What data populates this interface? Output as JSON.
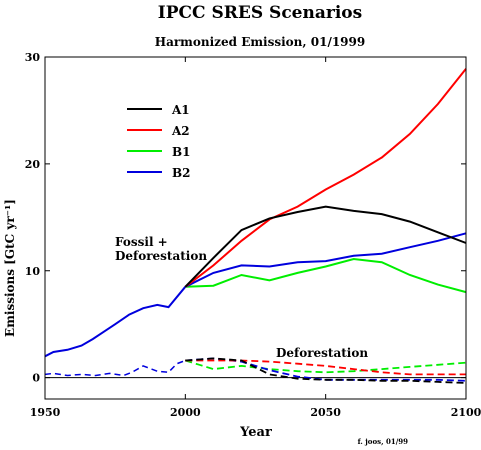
{
  "chart_data": {
    "type": "line",
    "title": "IPCC SRES Scenarios",
    "subtitle": "Harmonized Emission, 01/1999",
    "xlabel": "Year",
    "ylabel": "Emissions [GtC yr⁻¹]",
    "xlim": [
      1950,
      2100
    ],
    "ylim": [
      -2,
      30
    ],
    "xticks": [
      1950,
      2000,
      2050,
      2100
    ],
    "yticks": [
      0,
      10,
      20,
      30
    ],
    "grid": false,
    "legend": "upper-left",
    "annotations": [
      "Fossil +",
      "Deforestation",
      "Deforestation"
    ],
    "credit": "f. joos, 01/99",
    "historical": {
      "name": "",
      "color": "#0000dd",
      "fossil": {
        "x": [
          1950,
          1953,
          1958,
          1963,
          1967,
          1971,
          1975,
          1980,
          1985,
          1990,
          1994,
          2000
        ],
        "y": [
          2.0,
          2.4,
          2.6,
          3.0,
          3.6,
          4.3,
          5.0,
          5.9,
          6.5,
          6.8,
          6.6,
          8.5
        ]
      },
      "deforestation": {
        "x": [
          1950,
          1953,
          1958,
          1963,
          1968,
          1973,
          1978,
          1981,
          1985,
          1990,
          1994,
          1997,
          2000
        ],
        "y": [
          0.3,
          0.4,
          0.2,
          0.3,
          0.2,
          0.4,
          0.2,
          0.5,
          1.1,
          0.6,
          0.5,
          1.3,
          1.6
        ]
      }
    },
    "series": [
      {
        "name": "A1",
        "color": "#000000",
        "fossil": {
          "x": [
            2000,
            2010,
            2020,
            2030,
            2040,
            2050,
            2060,
            2070,
            2080,
            2090,
            2100
          ],
          "y": [
            8.5,
            11.2,
            13.8,
            14.9,
            15.5,
            16.0,
            15.6,
            15.3,
            14.6,
            13.6,
            12.6
          ]
        },
        "deforestation": {
          "x": [
            2000,
            2005,
            2010,
            2020,
            2030,
            2040,
            2050,
            2060,
            2070,
            2080,
            2090,
            2100
          ],
          "y": [
            1.6,
            1.7,
            1.8,
            1.6,
            0.3,
            -0.1,
            -0.2,
            -0.2,
            -0.3,
            -0.3,
            -0.4,
            -0.5
          ]
        }
      },
      {
        "name": "A2",
        "color": "#ff0000",
        "fossil": {
          "x": [
            2000,
            2010,
            2020,
            2030,
            2040,
            2050,
            2060,
            2070,
            2080,
            2090,
            2100
          ],
          "y": [
            8.5,
            10.5,
            12.8,
            14.8,
            16.0,
            17.6,
            19.0,
            20.6,
            22.8,
            25.6,
            28.9
          ]
        },
        "deforestation": {
          "x": [
            2000,
            2010,
            2020,
            2030,
            2040,
            2050,
            2060,
            2070,
            2080,
            2090,
            2100
          ],
          "y": [
            1.6,
            1.6,
            1.6,
            1.5,
            1.3,
            1.1,
            0.8,
            0.5,
            0.3,
            0.3,
            0.3
          ]
        }
      },
      {
        "name": "B1",
        "color": "#00ee00",
        "fossil": {
          "x": [
            2000,
            2010,
            2020,
            2030,
            2040,
            2050,
            2060,
            2070,
            2080,
            2090,
            2100
          ],
          "y": [
            8.5,
            8.6,
            9.6,
            9.1,
            9.8,
            10.4,
            11.1,
            10.8,
            9.6,
            8.7,
            8.0
          ]
        },
        "deforestation": {
          "x": [
            2000,
            2005,
            2010,
            2020,
            2030,
            2040,
            2050,
            2060,
            2070,
            2080,
            2090,
            2100
          ],
          "y": [
            1.6,
            1.2,
            0.8,
            1.1,
            0.8,
            0.6,
            0.5,
            0.6,
            0.8,
            1.0,
            1.2,
            1.4
          ]
        }
      },
      {
        "name": "B2",
        "color": "#0000dd",
        "fossil": {
          "x": [
            2000,
            2010,
            2020,
            2030,
            2040,
            2050,
            2060,
            2070,
            2080,
            2090,
            2100
          ],
          "y": [
            8.5,
            9.8,
            10.5,
            10.4,
            10.8,
            10.9,
            11.4,
            11.6,
            12.2,
            12.8,
            13.5
          ]
        },
        "deforestation": {
          "x": [
            2000,
            2010,
            2020,
            2030,
            2040,
            2050,
            2060,
            2070,
            2080,
            2090,
            2100
          ],
          "y": [
            1.6,
            1.8,
            1.5,
            0.7,
            0.1,
            -0.2,
            -0.2,
            -0.2,
            -0.2,
            -0.2,
            -0.3
          ]
        }
      }
    ]
  }
}
